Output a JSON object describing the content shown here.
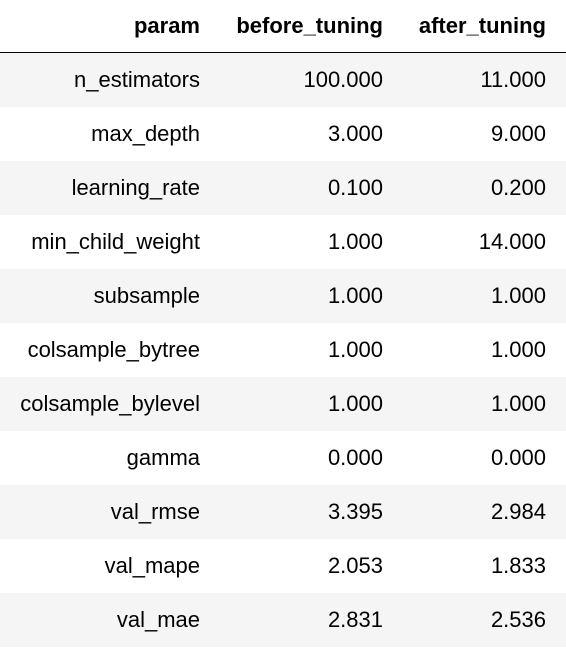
{
  "table": {
    "headers": [
      "param",
      "before_tuning",
      "after_tuning"
    ],
    "rows": [
      [
        "n_estimators",
        "100.000",
        "11.000"
      ],
      [
        "max_depth",
        "3.000",
        "9.000"
      ],
      [
        "learning_rate",
        "0.100",
        "0.200"
      ],
      [
        "min_child_weight",
        "1.000",
        "14.000"
      ],
      [
        "subsample",
        "1.000",
        "1.000"
      ],
      [
        "colsample_bytree",
        "1.000",
        "1.000"
      ],
      [
        "colsample_bylevel",
        "1.000",
        "1.000"
      ],
      [
        "gamma",
        "0.000",
        "0.000"
      ],
      [
        "val_rmse",
        "3.395",
        "2.984"
      ],
      [
        "val_mape",
        "2.053",
        "1.833"
      ],
      [
        "val_mae",
        "2.831",
        "2.536"
      ]
    ]
  }
}
